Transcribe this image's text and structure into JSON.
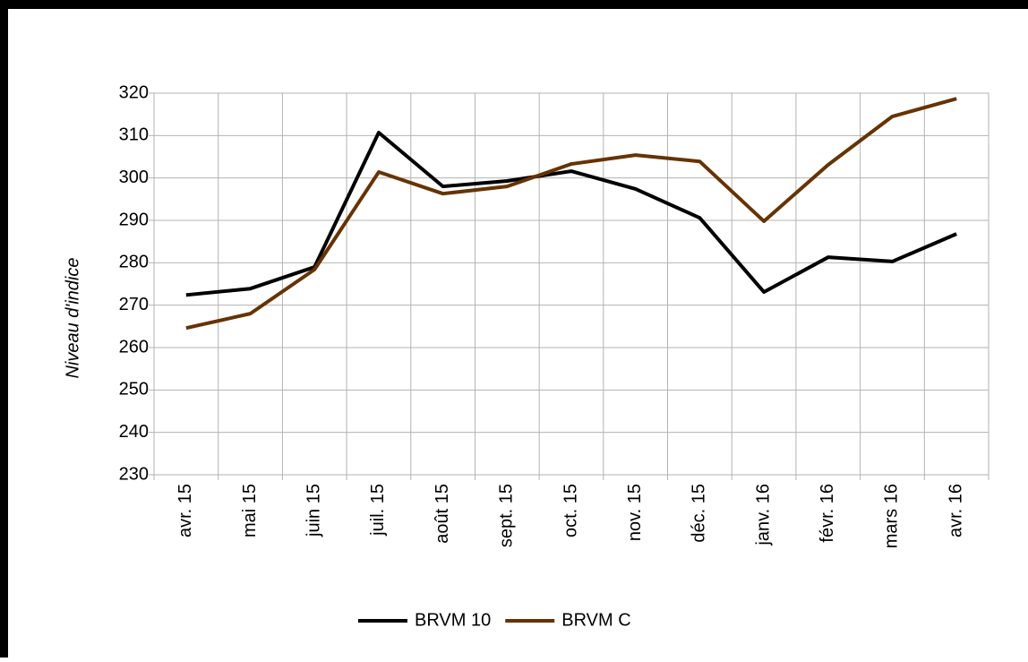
{
  "chart_data": {
    "type": "line",
    "y_label": "Niveau d'indice",
    "categories": [
      "avr. 15",
      "mai 15",
      "juin 15",
      "juil. 15",
      "août 15",
      "sept. 15",
      "oct. 15",
      "nov. 15",
      "déc. 15",
      "janv. 16",
      "févr. 16",
      "mars 16",
      "avr. 16"
    ],
    "series": [
      {
        "name": "BRVM 10",
        "color": "#000000",
        "values": [
          272.4,
          273.9,
          279.0,
          310.7,
          298.0,
          299.3,
          301.6,
          297.4,
          290.6,
          273.1,
          281.3,
          280.3,
          286.8
        ]
      },
      {
        "name": "BRVM C",
        "color": "#663300",
        "values": [
          264.6,
          268.0,
          278.4,
          301.4,
          296.3,
          298.0,
          303.3,
          305.4,
          303.9,
          289.8,
          303.1,
          314.5,
          318.7
        ]
      }
    ],
    "ylim": [
      230,
      320
    ],
    "yticks": [
      230,
      240,
      250,
      260,
      270,
      280,
      290,
      300,
      310,
      320
    ],
    "grid": true,
    "legend": "bottom"
  }
}
